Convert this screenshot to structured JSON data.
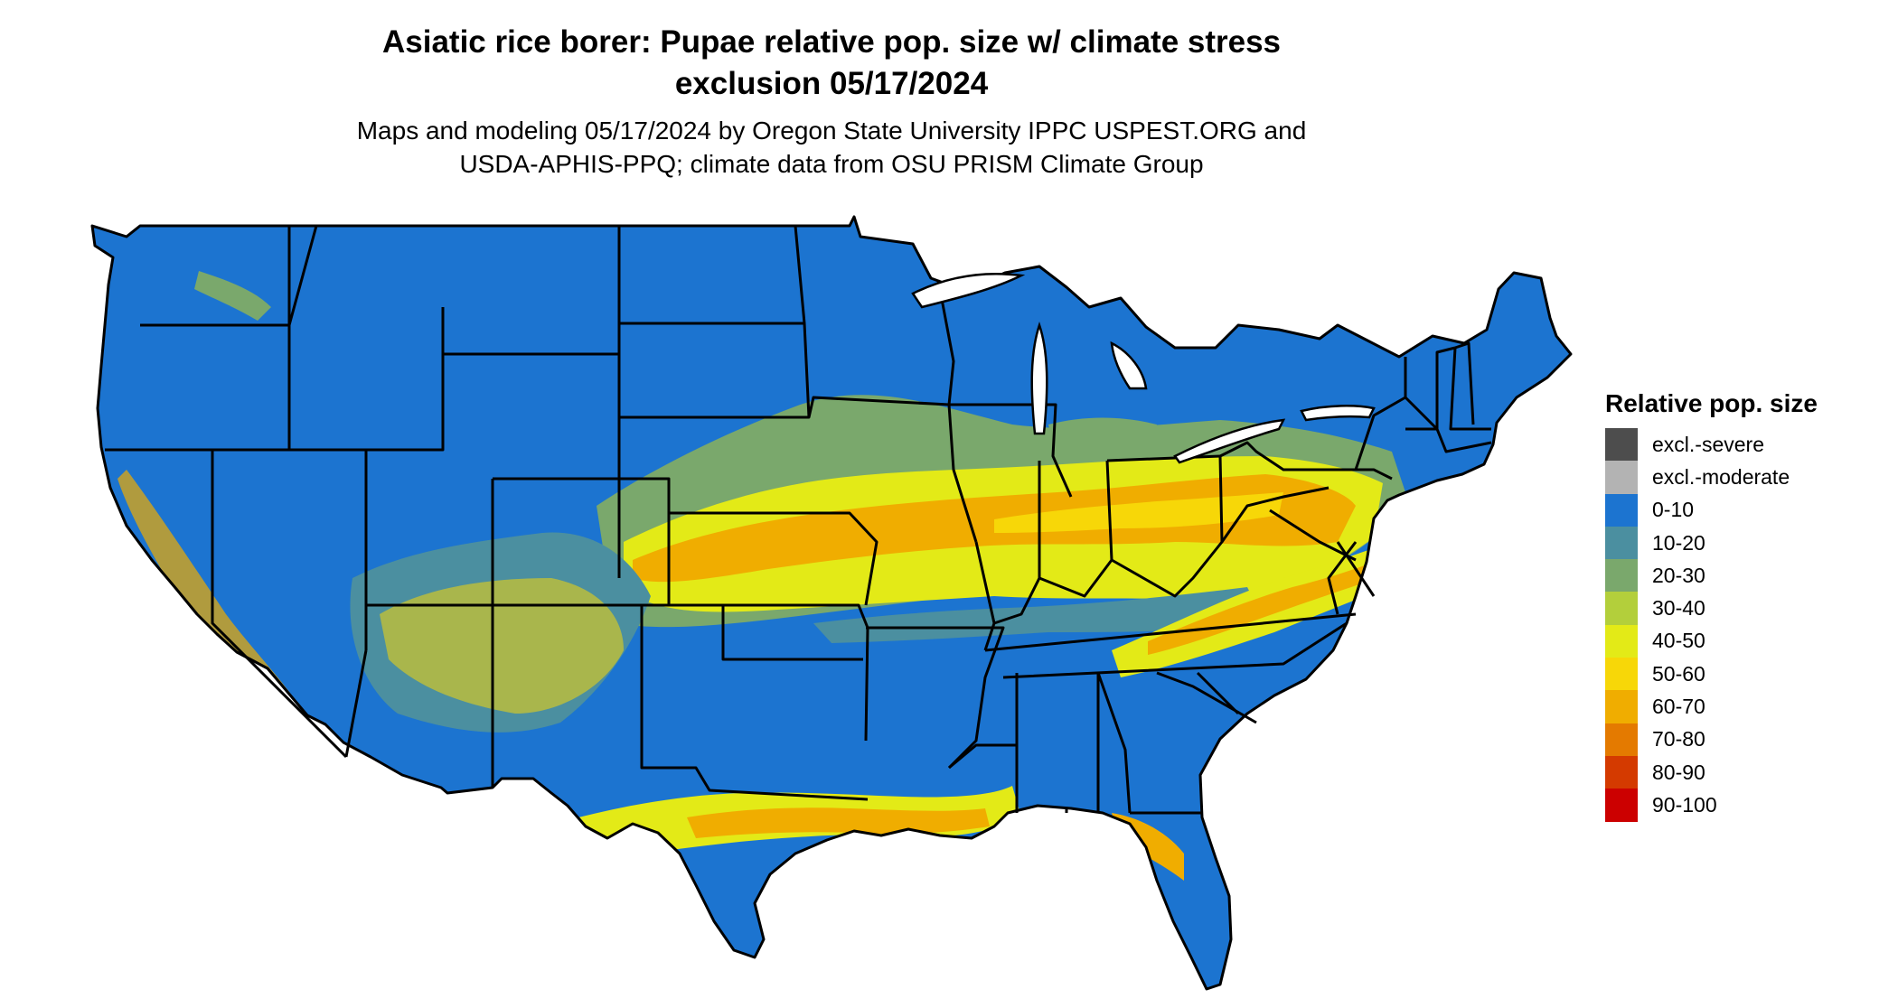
{
  "title": {
    "line1": "Asiatic rice borer: Pupae relative pop. size w/ climate stress",
    "line2": "exclusion 05/17/2024"
  },
  "subtitle": {
    "line1": "Maps and modeling 05/17/2024 by Oregon State University IPPC USPEST.ORG and",
    "line2": "USDA-APHIS-PPQ; climate data from OSU PRISM Climate Group"
  },
  "legend": {
    "title": "Relative pop. size",
    "items": [
      {
        "label": "excl.-severe",
        "color": "#4d4d4d"
      },
      {
        "label": "excl.-moderate",
        "color": "#b3b3b3"
      },
      {
        "label": "0-10",
        "color": "#1c74d0"
      },
      {
        "label": "10-20",
        "color": "#4b8fa0"
      },
      {
        "label": "20-30",
        "color": "#7aa86c"
      },
      {
        "label": "30-40",
        "color": "#b3cf3b"
      },
      {
        "label": "40-50",
        "color": "#e3ea17"
      },
      {
        "label": "50-60",
        "color": "#f7d708"
      },
      {
        "label": "60-70",
        "color": "#f0ad00"
      },
      {
        "label": "70-80",
        "color": "#e47a00"
      },
      {
        "label": "80-90",
        "color": "#d43a00"
      },
      {
        "label": "90-100",
        "color": "#cc0000"
      }
    ]
  },
  "colors": {
    "background": "#ffffff",
    "state_border": "#000000"
  }
}
